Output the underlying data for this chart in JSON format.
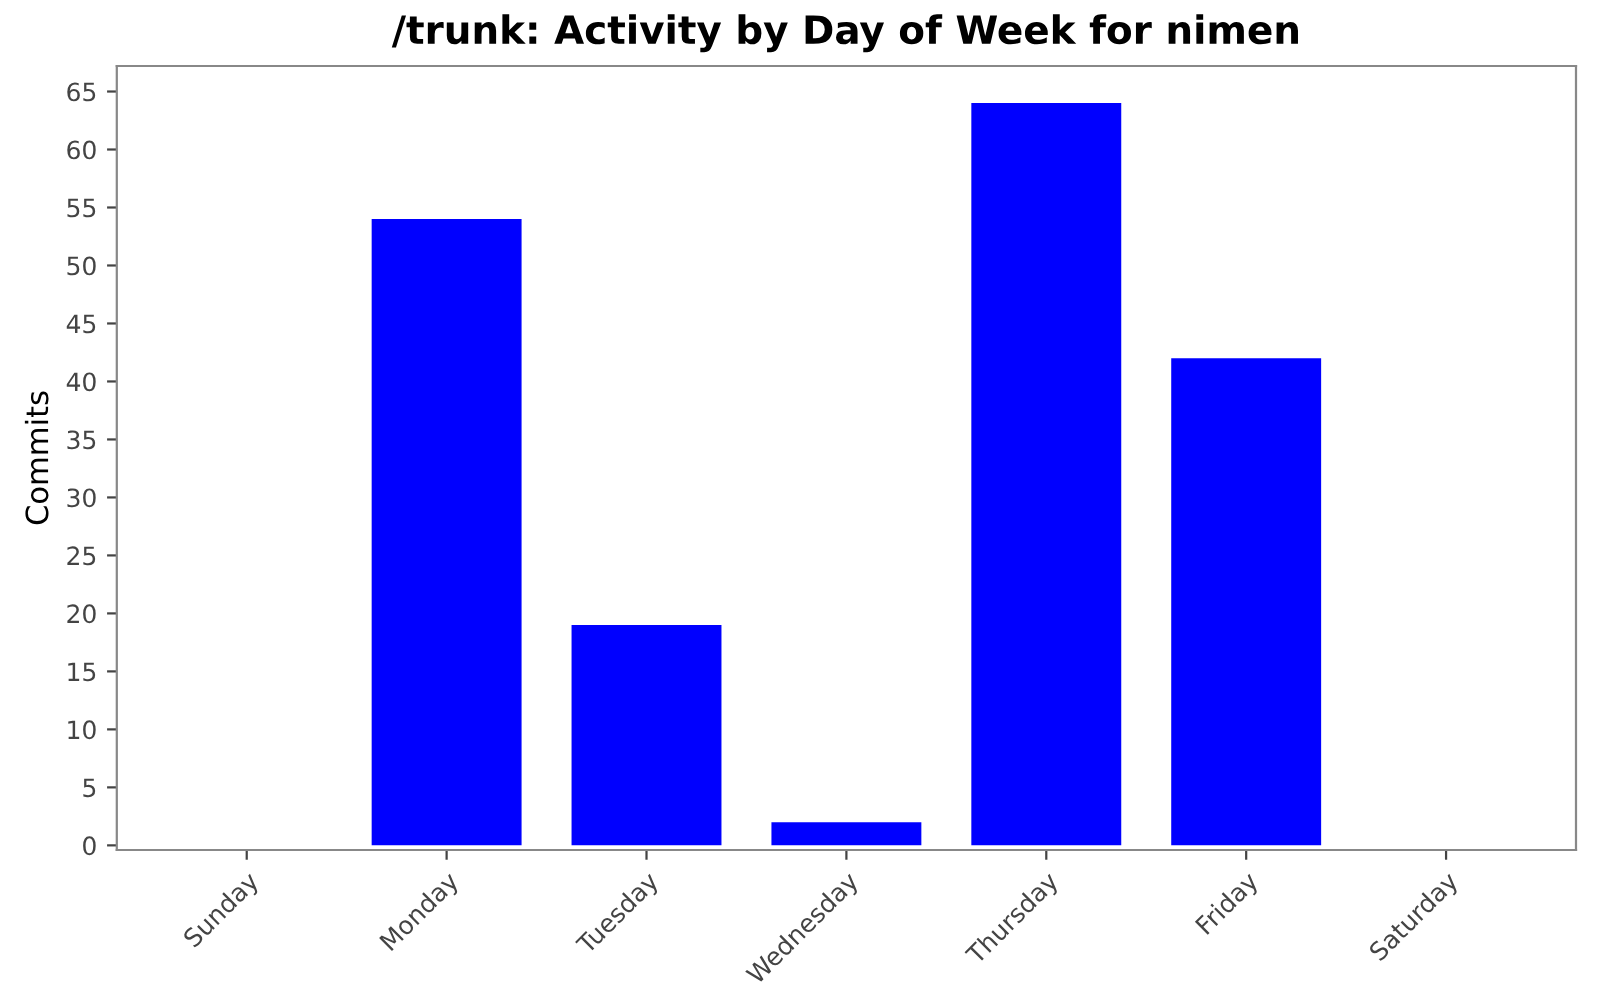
{
  "chart_data": {
    "type": "bar",
    "title": "/trunk: Activity by Day of Week for nimen",
    "ylabel": "Commits",
    "categories": [
      "Sunday",
      "Monday",
      "Tuesday",
      "Wednesday",
      "Thursday",
      "Friday",
      "Saturday"
    ],
    "values": [
      0,
      54,
      19,
      2,
      64,
      42,
      0
    ],
    "color": "#0000ff",
    "ylim": [
      -0.4,
      67.2
    ],
    "yticks": [
      0,
      5,
      10,
      15,
      20,
      25,
      30,
      35,
      40,
      45,
      50,
      55,
      60,
      65
    ],
    "grid": false,
    "legend": false
  }
}
